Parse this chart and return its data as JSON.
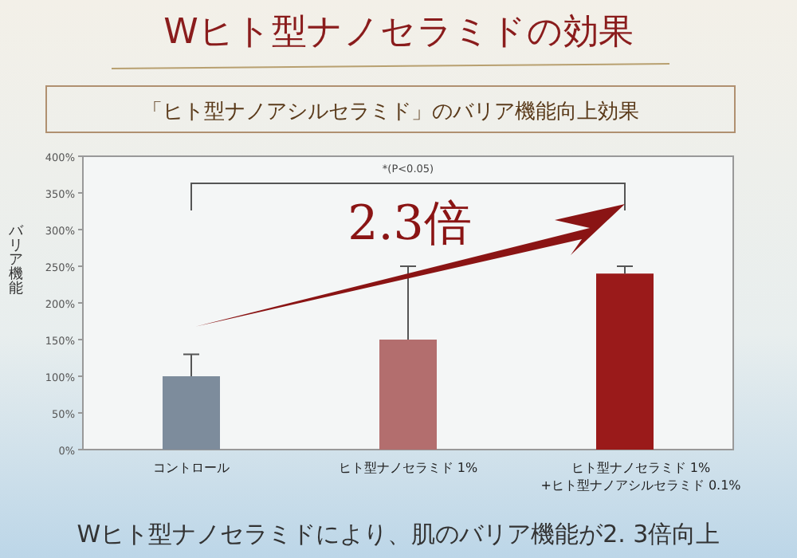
{
  "chart_data": {
    "type": "bar",
    "title": "Wヒト型ナノセラミドの効果",
    "subtitle": "「ヒト型ナノアシルセラミド」のバリア機能向上効果",
    "ylabel": "バリア機能",
    "categories": [
      "コントロール",
      "ヒト型ナノセラミド 1%",
      "ヒト型ナノセラミド 1%\n+ヒト型ナノアシルセラミド 0.1%"
    ],
    "values": [
      100,
      150,
      240
    ],
    "colors": [
      "#7d8c9c",
      "#b36e6e",
      "#9a1a1a"
    ],
    "errors": [
      [
        100,
        130
      ],
      [
        150,
        250
      ],
      [
        240,
        250
      ]
    ],
    "ylim": [
      0,
      400
    ],
    "yticks": [
      {
        "value": 0,
        "label": "0%"
      },
      {
        "value": 50,
        "label": "50%"
      },
      {
        "value": 100,
        "label": "100%"
      },
      {
        "value": 150,
        "label": "150%"
      },
      {
        "value": 200,
        "label": "200%"
      },
      {
        "value": 250,
        "label": "250%"
      },
      {
        "value": 300,
        "label": "300%"
      },
      {
        "value": 350,
        "label": "350%"
      },
      {
        "value": 400,
        "label": "400%"
      }
    ],
    "grid": false,
    "annotations": [
      "*(P<0.05)",
      "2.3倍",
      "Wヒト型ナノセラミドにより、肌のバリア機能が2. 3倍向上"
    ]
  }
}
